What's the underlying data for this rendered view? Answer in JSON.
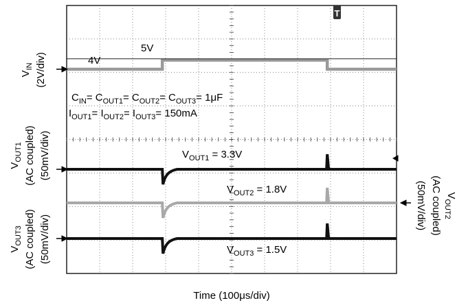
{
  "chart_data": {
    "type": "line",
    "title": "",
    "xlabel": "Time (100μs/div)",
    "x_divisions": 10,
    "y_divisions": 8,
    "grid": true,
    "trigger_marker": "T",
    "conditions": {
      "line1": {
        "parts": [
          [
            "C",
            "IN"
          ],
          [
            "= C",
            "OUT1"
          ],
          [
            "= C",
            "OUT2"
          ],
          [
            "= C",
            "OUT3"
          ],
          [
            "= 1μF",
            ""
          ]
        ]
      },
      "line2": {
        "parts": [
          [
            "I",
            "OUT1"
          ],
          [
            "= I",
            "OUT2"
          ],
          [
            "= I",
            "OUT3"
          ],
          [
            "= 150mA",
            ""
          ]
        ]
      }
    },
    "channels": [
      {
        "label_main": "V",
        "label_sub": "IN",
        "scale": "(2V/div)",
        "coupling": "",
        "color": "#9a9a9a",
        "levels": [
          {
            "text": "4V",
            "value_V": 4
          },
          {
            "text": "5V",
            "value_V": 5
          }
        ],
        "step_time_us": [
          290,
          790
        ],
        "value_label": ""
      },
      {
        "label_main": "V",
        "label_sub": "OUT1",
        "scale": "(50mV/div)",
        "coupling": "(AC coupled)",
        "color": "#111111",
        "value_label": {
          "main": "V",
          "sub": "OUT1",
          "rest": " = 3.3V"
        },
        "transient_time_us": [
          290,
          790
        ]
      },
      {
        "label_main": "V",
        "label_sub": "OUT2",
        "scale": "(50mV/div)",
        "coupling": "(AC coupled)",
        "color": "#a8a8a8",
        "value_label": {
          "main": "V",
          "sub": "OUT2",
          "rest": " = 1.8V"
        },
        "transient_time_us": [
          290,
          790
        ]
      },
      {
        "label_main": "V",
        "label_sub": "OUT3",
        "scale": "(50mV/div)",
        "coupling": "(AC coupled)",
        "color": "#111111",
        "value_label": {
          "main": "V",
          "sub": "OUT3",
          "rest": " = 1.5V"
        },
        "transient_time_us": [
          290,
          790
        ]
      }
    ]
  }
}
